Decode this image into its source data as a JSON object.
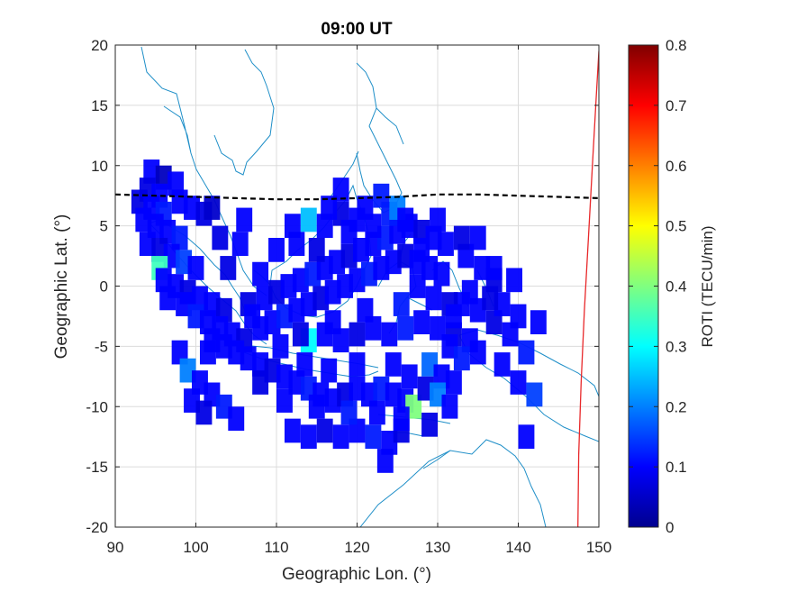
{
  "chart_data": {
    "type": "heatmap",
    "title": "09:00 UT",
    "xlabel": "Geographic Lon. (°)",
    "ylabel": "Geographic Lat. (°)",
    "xlim": [
      90,
      150
    ],
    "ylim": [
      -20,
      20
    ],
    "xticks": [
      90,
      100,
      110,
      120,
      130,
      140,
      150
    ],
    "yticks": [
      20,
      15,
      10,
      5,
      0,
      -5,
      -10,
      -15,
      -20
    ],
    "grid": true,
    "colorbar": {
      "label": "ROTI (TECU/min)",
      "colormap": "jet",
      "range": [
        0,
        0.8
      ],
      "ticks": [
        0,
        0.1,
        0.2,
        0.3,
        0.4,
        0.5,
        0.6,
        0.7,
        0.8
      ]
    },
    "overlays": {
      "coastline_color": "#1f8fc8",
      "dashed_line_color": "#000000",
      "dashed_line": [
        [
          90,
          7.6
        ],
        [
          95,
          7.5
        ],
        [
          100,
          7.4
        ],
        [
          105,
          7.3
        ],
        [
          110,
          7.2
        ],
        [
          115,
          7.2
        ],
        [
          120,
          7.3
        ],
        [
          125,
          7.4
        ],
        [
          130,
          7.6
        ],
        [
          135,
          7.6
        ],
        [
          140,
          7.5
        ],
        [
          145,
          7.4
        ],
        [
          150,
          7.3
        ]
      ],
      "red_line_color": "#e8282a",
      "red_line": [
        [
          147.4,
          -20
        ],
        [
          147.5,
          -14
        ],
        [
          147.8,
          -8
        ],
        [
          148.2,
          -2
        ],
        [
          148.7,
          4
        ],
        [
          149.2,
          10
        ],
        [
          149.7,
          16
        ],
        [
          150,
          19.5
        ]
      ]
    },
    "patches": [
      [
        94.5,
        9.5,
        0.1
      ],
      [
        96.0,
        9.0,
        0.05
      ],
      [
        97.5,
        8.5,
        0.1
      ],
      [
        94.0,
        8.0,
        0.08
      ],
      [
        95.5,
        7.5,
        0.1
      ],
      [
        93.0,
        7.0,
        0.08
      ],
      [
        94.5,
        6.5,
        0.1
      ],
      [
        96.0,
        6.0,
        0.12
      ],
      [
        98.0,
        7.0,
        0.1
      ],
      [
        99.5,
        6.5,
        0.1
      ],
      [
        101.0,
        6.0,
        0.08
      ],
      [
        102.0,
        6.5,
        0.06
      ],
      [
        93.5,
        5.5,
        0.1
      ],
      [
        95.0,
        5.0,
        0.1
      ],
      [
        96.5,
        4.5,
        0.1
      ],
      [
        98.0,
        4.0,
        0.12
      ],
      [
        94.0,
        3.5,
        0.1
      ],
      [
        95.5,
        3.0,
        0.08
      ],
      [
        97.0,
        2.5,
        0.1
      ],
      [
        98.5,
        2.0,
        0.15
      ],
      [
        100.0,
        1.5,
        0.1
      ],
      [
        95.5,
        1.5,
        0.35
      ],
      [
        96.0,
        0.5,
        0.1
      ],
      [
        97.5,
        0.0,
        0.1
      ],
      [
        99.0,
        -0.5,
        0.08
      ],
      [
        100.5,
        -1.0,
        0.1
      ],
      [
        102.0,
        -1.5,
        0.1
      ],
      [
        103.5,
        -2.0,
        0.08
      ],
      [
        98.5,
        -1.5,
        0.1
      ],
      [
        100.0,
        -2.5,
        0.12
      ],
      [
        101.5,
        -3.0,
        0.1
      ],
      [
        103.0,
        -3.5,
        0.1
      ],
      [
        104.5,
        -4.0,
        0.1
      ],
      [
        106.0,
        -4.5,
        0.08
      ],
      [
        102.0,
        -4.5,
        0.1
      ],
      [
        103.5,
        -5.0,
        0.1
      ],
      [
        105.0,
        -5.5,
        0.1
      ],
      [
        106.5,
        -6.0,
        0.1
      ],
      [
        108.0,
        -6.5,
        0.1
      ],
      [
        109.5,
        -7.0,
        0.08
      ],
      [
        111.0,
        -7.5,
        0.1
      ],
      [
        112.5,
        -8.0,
        0.1
      ],
      [
        114.0,
        -8.5,
        0.12
      ],
      [
        115.5,
        -9.0,
        0.1
      ],
      [
        117.0,
        -9.5,
        0.1
      ],
      [
        118.5,
        -9.0,
        0.08
      ],
      [
        120.0,
        -8.5,
        0.1
      ],
      [
        121.5,
        -9.0,
        0.1
      ],
      [
        123.0,
        -8.5,
        0.12
      ],
      [
        124.5,
        -9.0,
        0.1
      ],
      [
        126.0,
        -9.5,
        0.1
      ],
      [
        127.0,
        -10.0,
        0.4
      ],
      [
        104.0,
        1.5,
        0.08
      ],
      [
        105.5,
        3.5,
        0.1
      ],
      [
        106.0,
        5.5,
        0.1
      ],
      [
        103.0,
        4.0,
        0.08
      ],
      [
        108.5,
        -1.0,
        0.1
      ],
      [
        110.0,
        -0.5,
        0.08
      ],
      [
        111.5,
        0.0,
        0.1
      ],
      [
        113.0,
        0.5,
        0.1
      ],
      [
        114.5,
        1.0,
        0.12
      ],
      [
        116.0,
        1.5,
        0.1
      ],
      [
        117.5,
        2.0,
        0.1
      ],
      [
        119.0,
        2.5,
        0.08
      ],
      [
        120.5,
        3.0,
        0.1
      ],
      [
        122.0,
        3.5,
        0.1
      ],
      [
        123.5,
        4.0,
        0.12
      ],
      [
        125.0,
        4.5,
        0.1
      ],
      [
        126.5,
        5.0,
        0.1
      ],
      [
        128.0,
        4.5,
        0.08
      ],
      [
        129.5,
        4.0,
        0.1
      ],
      [
        131.0,
        3.5,
        0.1
      ],
      [
        108.0,
        -3.5,
        0.1
      ],
      [
        109.5,
        -3.0,
        0.1
      ],
      [
        111.0,
        -2.5,
        0.12
      ],
      [
        112.5,
        -2.0,
        0.1
      ],
      [
        114.0,
        -1.5,
        0.1
      ],
      [
        115.5,
        -1.0,
        0.08
      ],
      [
        117.0,
        -0.5,
        0.1
      ],
      [
        118.5,
        0.0,
        0.1
      ],
      [
        120.0,
        0.5,
        0.1
      ],
      [
        121.5,
        1.0,
        0.12
      ],
      [
        123.0,
        1.5,
        0.1
      ],
      [
        124.5,
        2.0,
        0.1
      ],
      [
        126.0,
        2.5,
        0.08
      ],
      [
        127.5,
        2.0,
        0.1
      ],
      [
        129.0,
        1.5,
        0.1
      ],
      [
        130.5,
        1.0,
        0.1
      ],
      [
        112.0,
        5.0,
        0.1
      ],
      [
        114.0,
        5.5,
        0.25
      ],
      [
        116.0,
        5.0,
        0.1
      ],
      [
        118.0,
        6.0,
        0.08
      ],
      [
        118.0,
        8.0,
        0.1
      ],
      [
        120.0,
        5.5,
        0.1
      ],
      [
        122.0,
        5.0,
        0.1
      ],
      [
        124.0,
        6.0,
        0.12
      ],
      [
        125.0,
        6.5,
        0.2
      ],
      [
        126.0,
        5.5,
        0.1
      ],
      [
        114.0,
        -4.5,
        0.3
      ],
      [
        116.0,
        -4.0,
        0.1
      ],
      [
        118.0,
        -4.5,
        0.1
      ],
      [
        120.0,
        -4.0,
        0.08
      ],
      [
        122.0,
        -3.5,
        0.1
      ],
      [
        124.0,
        -4.0,
        0.1
      ],
      [
        126.0,
        -3.5,
        0.12
      ],
      [
        128.0,
        -3.0,
        0.1
      ],
      [
        130.0,
        -3.5,
        0.1
      ],
      [
        132.0,
        -4.0,
        0.08
      ],
      [
        134.0,
        -4.5,
        0.1
      ],
      [
        131.5,
        -5.0,
        0.1
      ],
      [
        133.0,
        -6.0,
        0.12
      ],
      [
        135.0,
        -5.5,
        0.1
      ],
      [
        129.0,
        -6.5,
        0.18
      ],
      [
        130.5,
        -7.5,
        0.1
      ],
      [
        132.0,
        -8.0,
        0.1
      ],
      [
        128.5,
        -8.5,
        0.08
      ],
      [
        130.0,
        -9.0,
        0.2
      ],
      [
        126.5,
        -7.5,
        0.1
      ],
      [
        124.5,
        -6.5,
        0.1
      ],
      [
        110.0,
        3.0,
        0.1
      ],
      [
        108.0,
        1.0,
        0.1
      ],
      [
        106.5,
        -1.5,
        0.08
      ],
      [
        133.0,
        -1.5,
        0.1
      ],
      [
        135.0,
        -2.0,
        0.1
      ],
      [
        137.0,
        -3.0,
        0.08
      ],
      [
        139.0,
        -4.0,
        0.1
      ],
      [
        141.0,
        -5.5,
        0.12
      ],
      [
        138.0,
        -6.5,
        0.1
      ],
      [
        140.0,
        -8.0,
        0.1
      ],
      [
        142.0,
        -9.0,
        0.15
      ],
      [
        133.5,
        2.5,
        0.1
      ],
      [
        135.5,
        1.5,
        0.1
      ],
      [
        137.0,
        0.5,
        0.08
      ],
      [
        138.0,
        -1.5,
        0.1
      ],
      [
        140.0,
        -2.5,
        0.1
      ],
      [
        142.5,
        -3.0,
        0.1
      ],
      [
        133.0,
        4.0,
        0.08
      ],
      [
        135.0,
        4.0,
        0.1
      ],
      [
        137.0,
        1.5,
        0.1
      ],
      [
        139.5,
        0.5,
        0.1
      ],
      [
        131.5,
        -10.0,
        0.1
      ],
      [
        129.0,
        -11.5,
        0.08
      ],
      [
        141.0,
        -12.5,
        0.1
      ],
      [
        112.0,
        -12.0,
        0.1
      ],
      [
        114.0,
        -12.5,
        0.1
      ],
      [
        116.0,
        -12.0,
        0.08
      ],
      [
        118.0,
        -12.5,
        0.1
      ],
      [
        120.0,
        -12.0,
        0.1
      ],
      [
        122.0,
        -12.5,
        0.12
      ],
      [
        124.0,
        -13.0,
        0.1
      ],
      [
        125.5,
        -12.0,
        0.08
      ],
      [
        123.5,
        -14.5,
        0.1
      ],
      [
        98.0,
        -5.5,
        0.1
      ],
      [
        99.0,
        -7.0,
        0.2
      ],
      [
        100.5,
        -8.0,
        0.1
      ],
      [
        102.0,
        -9.0,
        0.1
      ],
      [
        103.5,
        -10.0,
        0.12
      ],
      [
        105.0,
        -11.0,
        0.1
      ],
      [
        99.5,
        -9.5,
        0.1
      ],
      [
        101.0,
        -10.5,
        0.08
      ],
      [
        96.5,
        -1.0,
        0.1
      ],
      [
        101.5,
        -5.5,
        0.1
      ],
      [
        107.0,
        -2.5,
        0.1
      ],
      [
        110.5,
        -5.0,
        0.1
      ],
      [
        113.0,
        -4.0,
        0.08
      ],
      [
        117.0,
        -3.0,
        0.1
      ],
      [
        121.0,
        -2.0,
        0.1
      ],
      [
        125.5,
        -1.5,
        0.12
      ],
      [
        127.5,
        0.0,
        0.1
      ],
      [
        129.5,
        -1.0,
        0.1
      ],
      [
        131.5,
        -1.5,
        0.08
      ],
      [
        119.0,
        4.5,
        0.1
      ],
      [
        121.0,
        6.5,
        0.1
      ],
      [
        123.0,
        7.5,
        0.12
      ],
      [
        116.5,
        6.5,
        0.1
      ],
      [
        112.5,
        3.5,
        0.1
      ],
      [
        115.0,
        3.0,
        0.08
      ],
      [
        120.0,
        -6.5,
        0.1
      ],
      [
        113.5,
        -6.5,
        0.1
      ],
      [
        116.5,
        -7.0,
        0.1
      ],
      [
        108.0,
        -8.0,
        0.08
      ],
      [
        111.0,
        -9.5,
        0.1
      ],
      [
        115.0,
        -10.0,
        0.1
      ],
      [
        119.0,
        -10.5,
        0.12
      ],
      [
        122.5,
        -10.5,
        0.1
      ],
      [
        125.5,
        -11.0,
        0.1
      ],
      [
        132.0,
        -2.5,
        0.1
      ],
      [
        134.0,
        -0.5,
        0.1
      ],
      [
        136.5,
        -1.0,
        0.08
      ],
      [
        128.0,
        3.0,
        0.1
      ],
      [
        130.0,
        5.5,
        0.1
      ]
    ]
  }
}
